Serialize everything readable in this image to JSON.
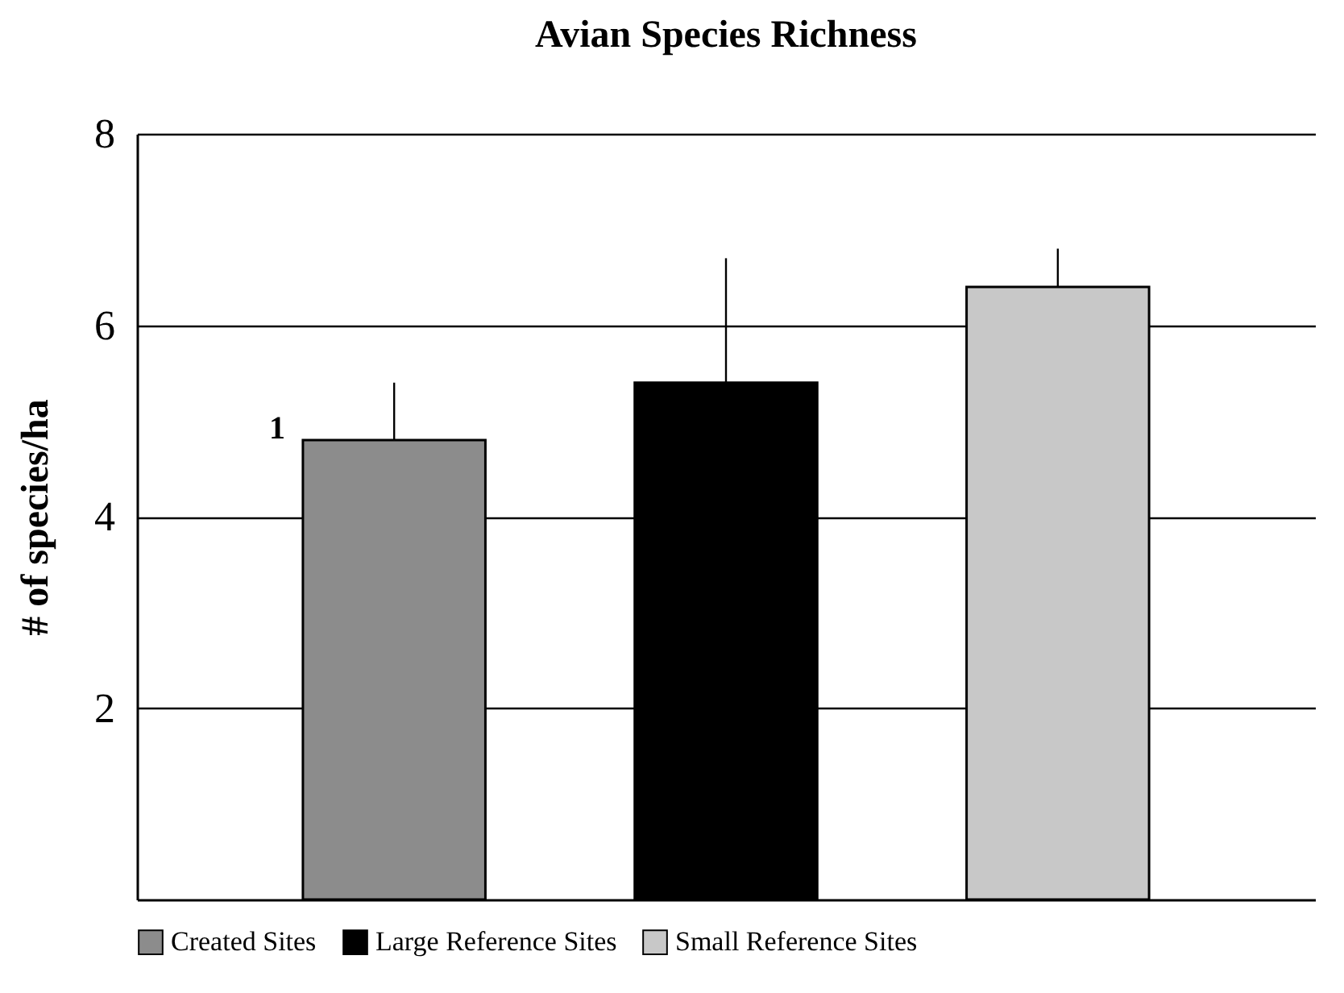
{
  "chart_data": {
    "type": "bar",
    "title": "Avian Species Richness",
    "ylabel": "# of species/ha",
    "categories": [
      null,
      null,
      null
    ],
    "stacked": true,
    "series": [
      {
        "name": "Created Sites",
        "color": "#8c8c8c",
        "values": [
          4.8,
          null,
          null
        ],
        "errors": [
          [
            4.8,
            5.4
          ],
          null,
          null
        ]
      },
      {
        "name": "Large Reference Sites",
        "color": "#000000",
        "values": [
          null,
          5.4,
          null
        ],
        "errors": [
          null,
          [
            5.4,
            6.7
          ],
          null
        ]
      },
      {
        "name": "Small Reference Sites",
        "color": "#c8c8c8",
        "values": [
          null,
          null,
          6.4
        ],
        "errors": [
          null,
          null,
          [
            6.4,
            6.8
          ]
        ]
      }
    ],
    "annotations": [
      "1"
    ],
    "ylim": [
      0,
      8
    ],
    "yticks": [
      2,
      4,
      6,
      8
    ],
    "grid": "y",
    "legend": "bottom",
    "tick_labels": "y"
  }
}
